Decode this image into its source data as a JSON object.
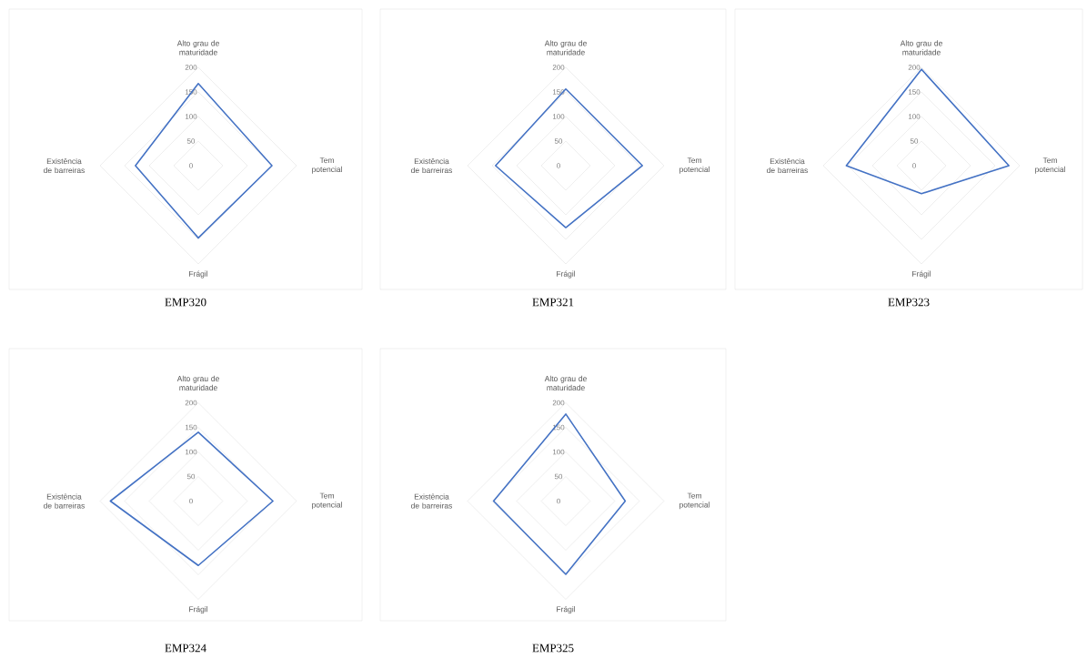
{
  "chart_data": [
    {
      "type": "radar",
      "title": "EMP320",
      "categories": [
        "Alto grau de maturidade",
        "Tem potencial",
        "Frágil",
        "Existência de barreiras"
      ],
      "ylim": [
        0,
        200
      ],
      "yticks": [
        0,
        50,
        100,
        150,
        200
      ],
      "grid": true,
      "series": [
        {
          "color": "#4472c4",
          "values": [
            167,
            150,
            147,
            128
          ]
        }
      ]
    },
    {
      "type": "radar",
      "title": "EMP321",
      "categories": [
        "Alto grau de maturidade",
        "Tem potencial",
        "Frágil",
        "Existência de barreiras"
      ],
      "ylim": [
        0,
        200
      ],
      "yticks": [
        0,
        50,
        100,
        150,
        200
      ],
      "grid": true,
      "series": [
        {
          "color": "#4472c4",
          "values": [
            156,
            156,
            126,
            143
          ]
        }
      ]
    },
    {
      "type": "radar",
      "title": "EMP323",
      "categories": [
        "Alto grau de maturidade",
        "Tem potencial",
        "Frágil",
        "Existência de barreiras"
      ],
      "ylim": [
        0,
        200
      ],
      "yticks": [
        0,
        50,
        100,
        150,
        200
      ],
      "grid": true,
      "series": [
        {
          "color": "#4472c4",
          "values": [
            196,
            178,
            57,
            153
          ]
        }
      ]
    },
    {
      "type": "radar",
      "title": "EMP324",
      "categories": [
        "Alto grau de maturidade",
        "Tem potencial",
        "Frágil",
        "Existência de barreiras"
      ],
      "ylim": [
        0,
        200
      ],
      "yticks": [
        0,
        50,
        100,
        150,
        200
      ],
      "grid": true,
      "series": [
        {
          "color": "#4472c4",
          "values": [
            140,
            152,
            131,
            179
          ]
        }
      ]
    },
    {
      "type": "radar",
      "title": "EMP325",
      "categories": [
        "Alto grau de maturidade",
        "Tem potencial",
        "Frágil",
        "Existência de barreiras"
      ],
      "ylim": [
        0,
        200
      ],
      "yticks": [
        0,
        50,
        100,
        150,
        200
      ],
      "grid": true,
      "series": [
        {
          "color": "#4472c4",
          "values": [
            177,
            121,
            149,
            147
          ]
        }
      ]
    }
  ]
}
